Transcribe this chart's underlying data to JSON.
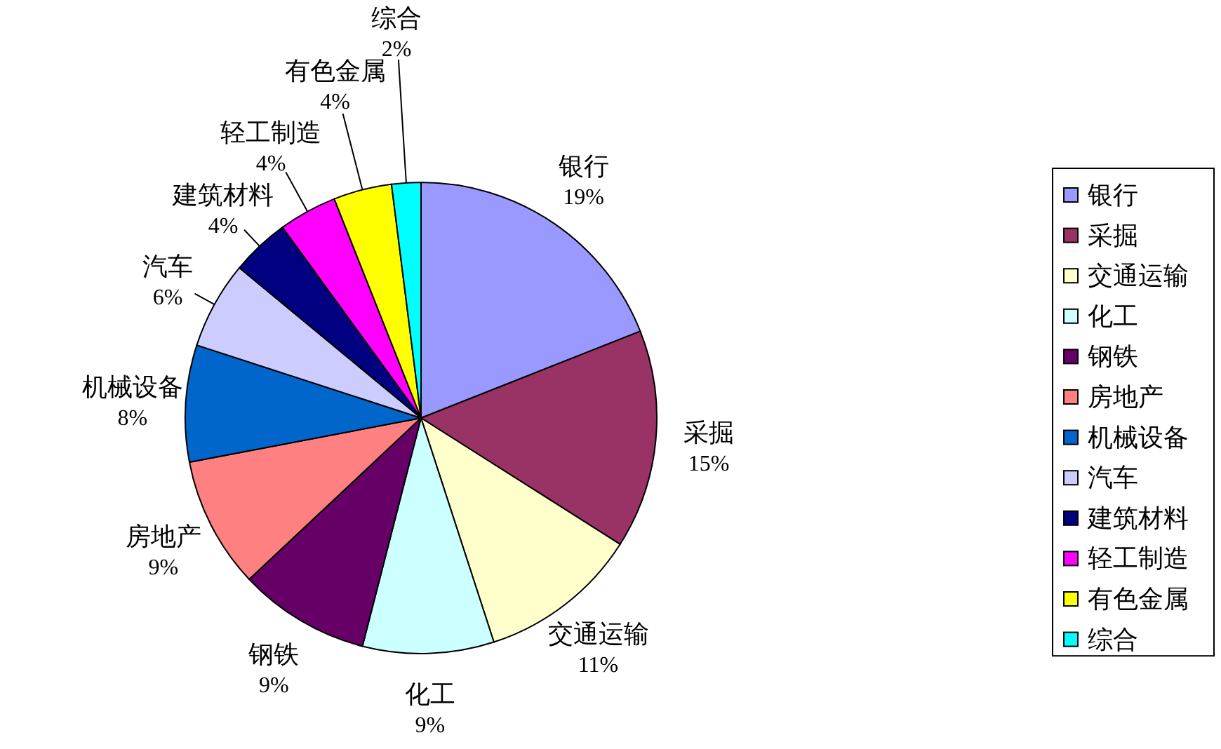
{
  "chart_data": {
    "type": "pie",
    "categories": [
      "银行",
      "采掘",
      "交通运输",
      "化工",
      "钢铁",
      "房地产",
      "机械设备",
      "汽车",
      "建筑材料",
      "轻工制造",
      "有色金属",
      "综合"
    ],
    "values": [
      19,
      15,
      11,
      9,
      9,
      9,
      8,
      6,
      4,
      4,
      4,
      2
    ],
    "colors": [
      "#9999ff",
      "#993366",
      "#ffffcc",
      "#ccffff",
      "#660066",
      "#ff8080",
      "#0066cc",
      "#ccccff",
      "#000080",
      "#ff00ff",
      "#ffff00",
      "#00ffff"
    ],
    "value_labels": [
      "19%",
      "15%",
      "11%",
      "9%",
      "9%",
      "9%",
      "8%",
      "6%",
      "4%",
      "4%",
      "4%",
      "2%"
    ],
    "legend": "right"
  }
}
